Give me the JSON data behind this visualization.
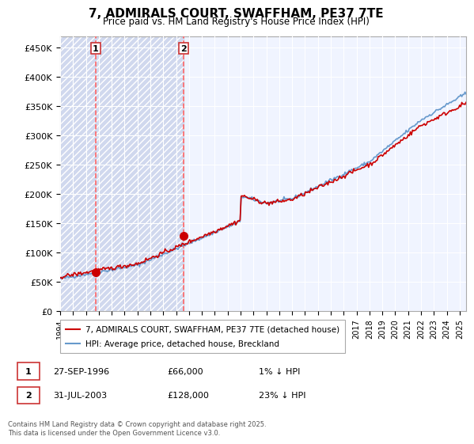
{
  "title": "7, ADMIRALS COURT, SWAFFHAM, PE37 7TE",
  "subtitle": "Price paid vs. HM Land Registry's House Price Index (HPI)",
  "ylabel_ticks": [
    "£0",
    "£50K",
    "£100K",
    "£150K",
    "£200K",
    "£250K",
    "£300K",
    "£350K",
    "£400K",
    "£450K"
  ],
  "ytick_vals": [
    0,
    50000,
    100000,
    150000,
    200000,
    250000,
    300000,
    350000,
    400000,
    450000
  ],
  "ylim": [
    0,
    470000
  ],
  "xlim_start": 1994.0,
  "xlim_end": 2025.5,
  "sale1_x": 1996.74,
  "sale1_y": 66000,
  "sale1_label": "1",
  "sale1_date": "27-SEP-1996",
  "sale1_price": "£66,000",
  "sale1_hpi": "1% ↓ HPI",
  "sale2_x": 2003.58,
  "sale2_y": 128000,
  "sale2_label": "2",
  "sale2_date": "31-JUL-2003",
  "sale2_price": "£128,000",
  "sale2_hpi": "23% ↓ HPI",
  "legend_line1": "7, ADMIRALS COURT, SWAFFHAM, PE37 7TE (detached house)",
  "legend_line2": "HPI: Average price, detached house, Breckland",
  "footnote": "Contains HM Land Registry data © Crown copyright and database right 2025.\nThis data is licensed under the Open Government Licence v3.0.",
  "line_color_red": "#cc0000",
  "line_color_blue": "#6699cc",
  "bg_color": "#f0f4ff",
  "grid_color": "#ffffff",
  "hatch_color": "#d0d8ee"
}
